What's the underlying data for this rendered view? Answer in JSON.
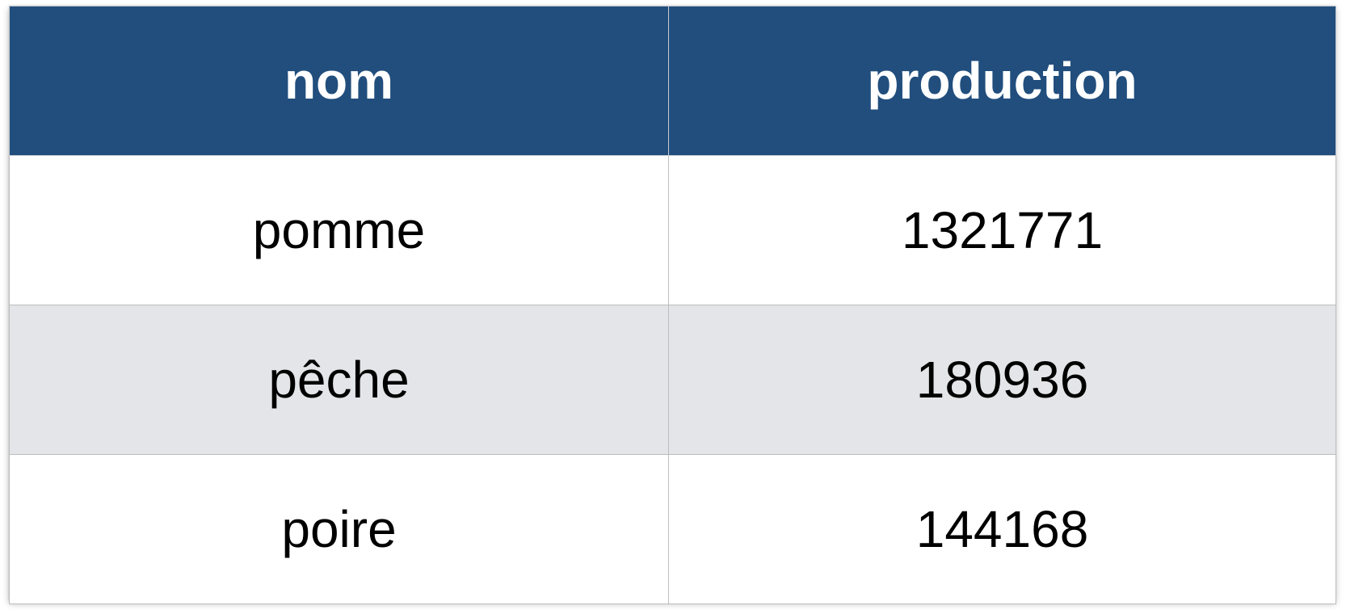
{
  "chart_data": {
    "type": "table",
    "columns": [
      "nom",
      "production"
    ],
    "rows": [
      {
        "nom": "pomme",
        "production": "1321771"
      },
      {
        "nom": "pêche",
        "production": "180936"
      },
      {
        "nom": "poire",
        "production": "144168"
      }
    ],
    "colors": {
      "header_bg": "#214e7d",
      "header_text": "#ffffff",
      "alt_row_bg": "#e4e5e8"
    }
  }
}
